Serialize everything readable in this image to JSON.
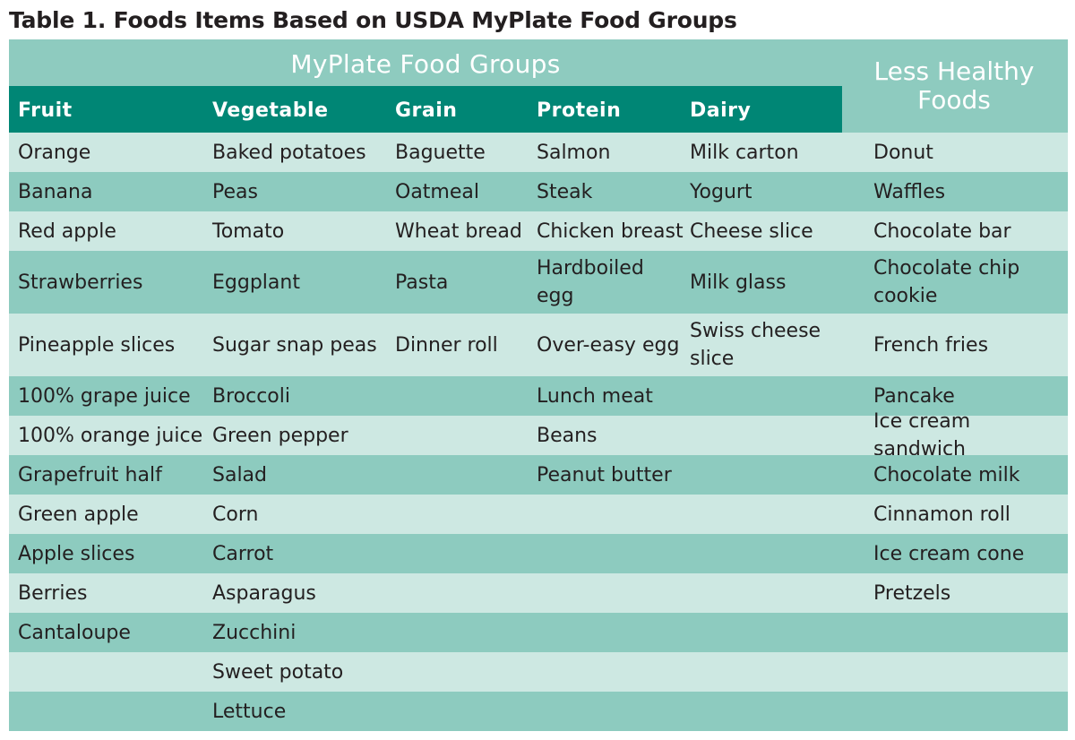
{
  "title": "Table 1. Foods Items Based on USDA MyPlate Food Groups",
  "group_header": "MyPlate Food Groups",
  "less_healthy_header": "Less Healthy Foods",
  "columns": [
    "Fruit",
    "Vegetable",
    "Grain",
    "Protein",
    "Dairy"
  ],
  "rows": [
    [
      "Orange",
      "Baked potatoes",
      "Baguette",
      "Salmon",
      "Milk carton",
      "Donut"
    ],
    [
      "Banana",
      "Peas",
      "Oatmeal",
      "Steak",
      "Yogurt",
      "Waffles"
    ],
    [
      "Red apple",
      "Tomato",
      "Wheat bread",
      "Chicken breast",
      "Cheese slice",
      "Chocolate bar"
    ],
    [
      "Strawberries",
      "Eggplant",
      "Pasta",
      "Hardboiled egg",
      "Milk glass",
      "Chocolate chip cookie"
    ],
    [
      "Pineapple slices",
      "Sugar snap peas",
      "Dinner roll",
      "Over-easy egg",
      "Swiss cheese slice",
      "French fries"
    ],
    [
      "100% grape juice",
      "Broccoli",
      "",
      "Lunch meat",
      "",
      "Pancake"
    ],
    [
      "100% orange juice",
      "Green pepper",
      "",
      "Beans",
      "",
      "Ice cream sandwich"
    ],
    [
      "Grapefruit half",
      "Salad",
      "",
      "Peanut butter",
      "",
      "Chocolate milk"
    ],
    [
      "Green apple",
      "Corn",
      "",
      "",
      "",
      "Cinnamon roll"
    ],
    [
      "Apple slices",
      "Carrot",
      "",
      "",
      "",
      "Ice cream cone"
    ],
    [
      "Berries",
      "Asparagus",
      "",
      "",
      "",
      "Pretzels"
    ],
    [
      "Cantaloupe",
      "Zucchini",
      "",
      "",
      "",
      ""
    ],
    [
      "",
      "Sweet potato",
      "",
      "",
      "",
      ""
    ],
    [
      "",
      "Lettuce",
      "",
      "",
      "",
      ""
    ]
  ],
  "colors": {
    "header_dark": "#008675",
    "header_mid": "#8ecbbf",
    "row_light": "#cde8e2",
    "row_mid": "#8dcbbf",
    "header_text": "#ffffff",
    "body_text": "#231f20"
  }
}
